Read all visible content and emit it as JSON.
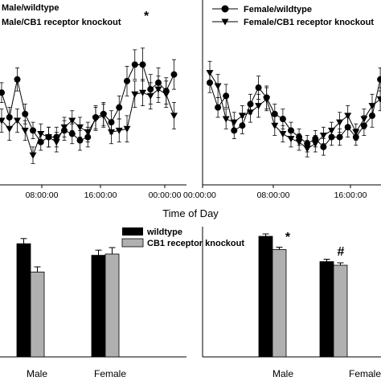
{
  "chart_data": [
    {
      "type": "line",
      "panel": "top-left",
      "legend": {
        "placement": "top-left",
        "entries": [
          "Male/wildtype",
          "Male/CB1 receptor knockout"
        ],
        "star": "*"
      },
      "x_tick_labels": [
        "08:00:00",
        "16:00:00",
        "00:00:00"
      ],
      "series": [
        {
          "name": "Male/wildtype",
          "marker": "circle",
          "x": [
            0,
            1,
            2,
            3,
            4,
            5,
            6,
            7,
            8,
            9,
            10,
            11,
            12,
            13,
            14,
            15,
            16,
            17,
            18,
            19,
            20,
            21,
            22
          ],
          "y": [
            56,
            41,
            64,
            43,
            33,
            26,
            29,
            29,
            33,
            31,
            27,
            29,
            41,
            43,
            38,
            47,
            63,
            73,
            73,
            58,
            62,
            57,
            67
          ],
          "err": [
            6,
            6,
            7,
            6,
            5,
            5,
            6,
            6,
            6,
            6,
            6,
            6,
            7,
            7,
            7,
            7,
            9,
            9,
            10,
            9,
            9,
            8,
            9
          ]
        },
        {
          "name": "Male/CB1 receptor knockout",
          "marker": "triangle-down",
          "x": [
            0,
            1,
            2,
            3,
            4,
            5,
            6,
            7,
            8,
            9,
            10,
            11,
            12,
            13,
            14,
            15,
            16,
            17,
            18,
            19,
            20,
            21,
            22
          ],
          "y": [
            39,
            34,
            39,
            33,
            18,
            31,
            29,
            26,
            35,
            39,
            35,
            32,
            40,
            42,
            32,
            33,
            34,
            55,
            56,
            54,
            58,
            55,
            42
          ],
          "err": [
            7,
            7,
            7,
            6,
            5,
            6,
            6,
            6,
            6,
            6,
            6,
            6,
            7,
            7,
            7,
            7,
            8,
            8,
            8,
            8,
            8,
            8,
            8
          ]
        }
      ]
    },
    {
      "type": "line",
      "panel": "top-right",
      "legend": {
        "placement": "top-left",
        "entries": [
          "Female/wildtype",
          "Female/CB1 receptor knockout"
        ]
      },
      "x_tick_labels": [
        "00:00:00",
        "08:00:00",
        "16:00:00"
      ],
      "series": [
        {
          "name": "Female/wildtype",
          "marker": "circle",
          "x": [
            0,
            1,
            2,
            3,
            4,
            5,
            6,
            7,
            8,
            9,
            10,
            11,
            12,
            13,
            14,
            15,
            16,
            17,
            18,
            19,
            20,
            21
          ],
          "y": [
            62,
            47,
            54,
            33,
            36,
            49,
            59,
            53,
            43,
            40,
            33,
            29,
            25,
            28,
            23,
            29,
            29,
            35,
            29,
            36,
            42,
            64
          ],
          "err": [
            6,
            6,
            7,
            5,
            5,
            6,
            7,
            7,
            6,
            6,
            5,
            5,
            5,
            5,
            5,
            5,
            5,
            6,
            5,
            6,
            7,
            7
          ]
        },
        {
          "name": "Female/CB1 receptor knockout",
          "marker": "triangle-down",
          "x": [
            0,
            1,
            2,
            3,
            4,
            5,
            6,
            7,
            8,
            9,
            10,
            11,
            12,
            13,
            14,
            15,
            16,
            17,
            18,
            19,
            20,
            21
          ],
          "y": [
            68,
            60,
            40,
            38,
            42,
            44,
            48,
            52,
            36,
            31,
            28,
            26,
            22,
            25,
            30,
            33,
            38,
            42,
            32,
            40,
            48,
            52
          ],
          "err": [
            7,
            7,
            6,
            6,
            6,
            6,
            7,
            7,
            6,
            5,
            5,
            5,
            5,
            5,
            5,
            5,
            6,
            6,
            5,
            6,
            7,
            7
          ]
        }
      ]
    },
    {
      "type": "bar",
      "panel": "bottom-left",
      "categories": [
        "Male",
        "Female"
      ],
      "series": [
        {
          "name": "wildtype",
          "values": [
            88,
            79
          ],
          "err": [
            4,
            4
          ],
          "color": "#000000"
        },
        {
          "name": "CB1 receptor knockout",
          "values": [
            66,
            80
          ],
          "err": [
            4,
            5
          ],
          "color": "#b0b0b0"
        }
      ],
      "ylim": [
        0,
        130
      ],
      "legend_placement": "top"
    },
    {
      "type": "bar",
      "panel": "bottom-right",
      "categories": [
        "Male",
        "Female"
      ],
      "series": [
        {
          "name": "wildtype",
          "values": [
            100,
            79
          ],
          "err": [
            2,
            2
          ],
          "color": "#000000"
        },
        {
          "name": "CB1 receptor knockout",
          "values": [
            89,
            76
          ],
          "err": [
            2,
            2
          ],
          "color": "#b0b0b0"
        }
      ],
      "ylim": [
        0,
        115
      ],
      "annotations": [
        "*",
        "#"
      ]
    }
  ],
  "shared": {
    "xlabel": "Time of Day"
  }
}
